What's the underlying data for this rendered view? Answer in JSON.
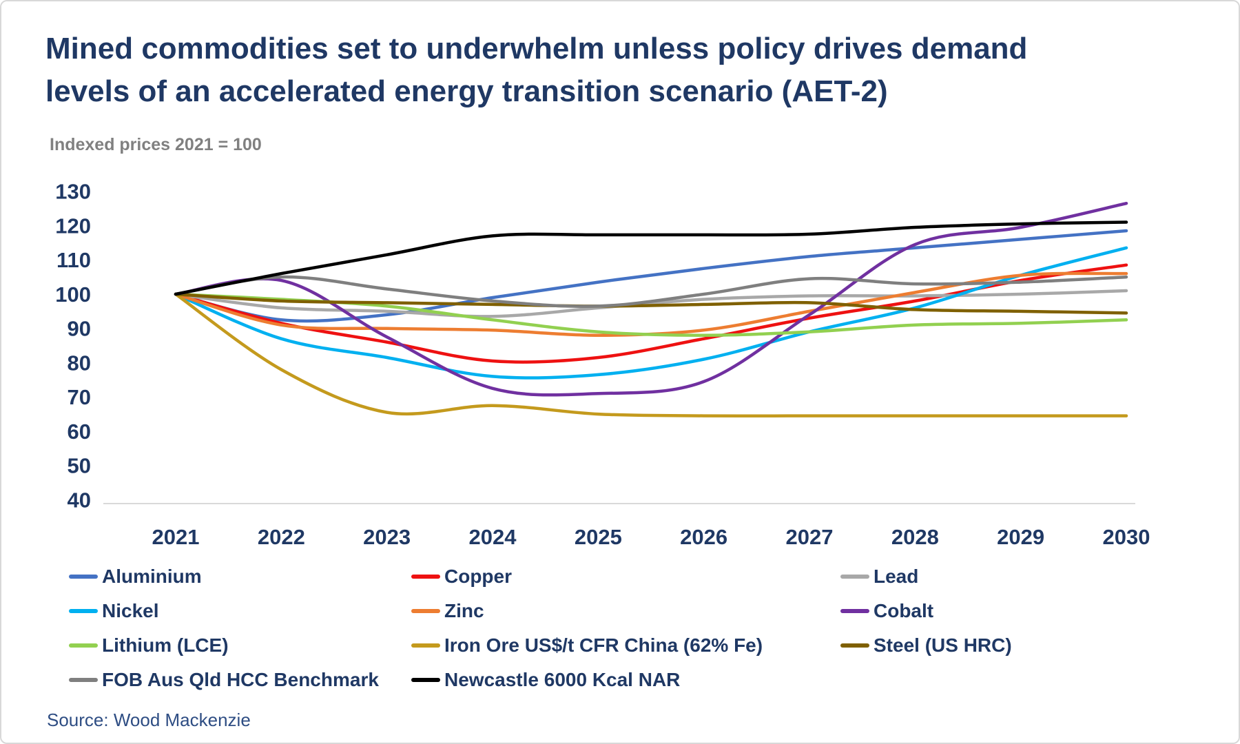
{
  "title": {
    "line1": "Mined commodities set to underwhelm unless policy drives demand",
    "line2": "levels of an accelerated energy transition scenario (AET-2)",
    "color": "#1F3864"
  },
  "subtitle": {
    "text": "Indexed prices 2021 = 100",
    "color": "#808080"
  },
  "source": {
    "text": "Source: Wood Mackenzie",
    "color": "#2E4D83"
  },
  "axis": {
    "tick_color": "#1F3864",
    "axis_line_color": "#D9D9D9"
  },
  "chart_data": {
    "type": "line",
    "title": "Indexed prices 2021 = 100",
    "xlabel": "",
    "ylabel": "",
    "grid": false,
    "legend_position": "bottom",
    "ylim": [
      40,
      130
    ],
    "yticks": [
      130,
      120,
      110,
      100,
      90,
      80,
      70,
      60,
      50,
      40
    ],
    "x": [
      2021,
      2022,
      2023,
      2024,
      2025,
      2026,
      2027,
      2028,
      2029,
      2030
    ],
    "series": [
      {
        "name": "Aluminium",
        "color": "#4472C4",
        "values": [
          100,
          92.5,
          94,
          99,
          103.5,
          107.5,
          111,
          113.5,
          116,
          118.5
        ]
      },
      {
        "name": "Copper",
        "color": "#EE1111",
        "values": [
          100,
          91.5,
          86,
          80.5,
          81.5,
          87,
          93,
          98,
          104,
          108.5
        ]
      },
      {
        "name": "Lead",
        "color": "#A8A8A8",
        "values": [
          100,
          96,
          95,
          93.5,
          96,
          98.5,
          99.5,
          99.5,
          100,
          101
        ]
      },
      {
        "name": "Nickel",
        "color": "#00B0F0",
        "values": [
          100,
          87,
          81.5,
          76,
          76.5,
          81,
          89,
          96,
          105.5,
          113.5
        ]
      },
      {
        "name": "Zinc",
        "color": "#ED7D31",
        "values": [
          100,
          91,
          90,
          89.5,
          88,
          89.5,
          95,
          100.5,
          105.5,
          106
        ]
      },
      {
        "name": "Cobalt",
        "color": "#7030A0",
        "values": [
          100,
          104,
          87.5,
          72.5,
          71,
          74.5,
          94,
          114.5,
          119.5,
          126.5
        ]
      },
      {
        "name": "Lithium (LCE)",
        "color": "#92D050",
        "values": [
          100,
          98.5,
          96.5,
          92.5,
          89,
          88,
          89,
          91,
          91.5,
          92.5
        ]
      },
      {
        "name": "Iron Ore US$/t CFR China (62% Fe)",
        "color": "#C49A1D",
        "values": [
          100,
          78,
          65.5,
          67.5,
          65,
          64.5,
          64.5,
          64.5,
          64.5,
          64.5
        ]
      },
      {
        "name": "Steel (US HRC)",
        "color": "#7F6000",
        "values": [
          100,
          98,
          97.5,
          97,
          96.5,
          97,
          97.5,
          95.5,
          95,
          94.5
        ]
      },
      {
        "name": "FOB Aus Qld HCC Benchmark",
        "color": "#7F7F7F",
        "values": [
          100,
          105,
          101.5,
          98,
          96.5,
          100,
          104.5,
          103,
          103.5,
          105
        ]
      },
      {
        "name": "Newcastle 6000 Kcal NAR",
        "color": "#000000",
        "values": [
          100,
          106,
          111.5,
          117,
          117.3,
          117.3,
          117.5,
          119.5,
          120.5,
          121
        ]
      }
    ]
  }
}
